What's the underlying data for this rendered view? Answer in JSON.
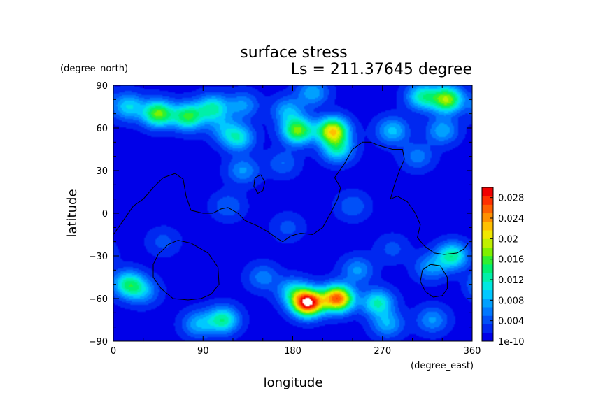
{
  "chart_data": {
    "type": "heatmap",
    "title": "surface stress",
    "subtitle": "Ls = 211.37645 degree",
    "xlabel": "longitude",
    "ylabel": "latitude",
    "x_unit": "(degree_east)",
    "y_unit": "(degree_north)",
    "xlim": [
      0,
      360
    ],
    "ylim": [
      -90,
      90
    ],
    "x_ticks": [
      "0",
      "90",
      "180",
      "270",
      "360"
    ],
    "y_ticks": [
      "90",
      "60",
      "30",
      "0",
      "−30",
      "−60",
      "−90"
    ],
    "colorbar": {
      "min": 1e-10,
      "max": 0.03,
      "tick_labels": [
        "1e-10",
        "0.004",
        "0.008",
        "0.012",
        "0.016",
        "0.02",
        "0.024",
        "0.028"
      ],
      "colors": [
        "#0000e8",
        "#0028f0",
        "#0050f8",
        "#0078ff",
        "#00a0ff",
        "#00c8ff",
        "#00e8e0",
        "#00f0a8",
        "#00f070",
        "#30f030",
        "#80f000",
        "#c0f000",
        "#f0e800",
        "#ffc000",
        "#ff9000",
        "#ff6000",
        "#ff3000",
        "#f00000"
      ]
    },
    "background_value": 0.001,
    "hotspots": [
      {
        "lon": 45,
        "lat": 70,
        "value": 0.016
      },
      {
        "lon": 75,
        "lat": 68,
        "value": 0.014
      },
      {
        "lon": 100,
        "lat": 74,
        "value": 0.011
      },
      {
        "lon": 15,
        "lat": 75,
        "value": 0.009
      },
      {
        "lon": 130,
        "lat": 76,
        "value": 0.006
      },
      {
        "lon": 175,
        "lat": 72,
        "value": 0.007
      },
      {
        "lon": 185,
        "lat": 58,
        "value": 0.016
      },
      {
        "lon": 220,
        "lat": 58,
        "value": 0.02
      },
      {
        "lon": 225,
        "lat": 45,
        "value": 0.01
      },
      {
        "lon": 200,
        "lat": 85,
        "value": 0.007
      },
      {
        "lon": 125,
        "lat": 53,
        "value": 0.01
      },
      {
        "lon": 110,
        "lat": 60,
        "value": 0.005
      },
      {
        "lon": 280,
        "lat": 58,
        "value": 0.008
      },
      {
        "lon": 335,
        "lat": 80,
        "value": 0.017
      },
      {
        "lon": 310,
        "lat": 82,
        "value": 0.011
      },
      {
        "lon": 330,
        "lat": 58,
        "value": 0.007
      },
      {
        "lon": 305,
        "lat": 40,
        "value": 0.005
      },
      {
        "lon": 130,
        "lat": 30,
        "value": 0.006
      },
      {
        "lon": 170,
        "lat": 35,
        "value": 0.004
      },
      {
        "lon": 115,
        "lat": 5,
        "value": 0.004
      },
      {
        "lon": 175,
        "lat": -10,
        "value": 0.003
      },
      {
        "lon": 240,
        "lat": 5,
        "value": 0.004
      },
      {
        "lon": 340,
        "lat": -30,
        "value": 0.012
      },
      {
        "lon": 318,
        "lat": -38,
        "value": 0.006
      },
      {
        "lon": 15,
        "lat": -50,
        "value": 0.012
      },
      {
        "lon": 30,
        "lat": -55,
        "value": 0.006
      },
      {
        "lon": 195,
        "lat": -63,
        "value": 0.03
      },
      {
        "lon": 225,
        "lat": -60,
        "value": 0.025
      },
      {
        "lon": 180,
        "lat": -55,
        "value": 0.008
      },
      {
        "lon": 265,
        "lat": -63,
        "value": 0.011
      },
      {
        "lon": 150,
        "lat": -45,
        "value": 0.005
      },
      {
        "lon": 110,
        "lat": -75,
        "value": 0.012
      },
      {
        "lon": 85,
        "lat": -78,
        "value": 0.007
      },
      {
        "lon": 275,
        "lat": -78,
        "value": 0.007
      },
      {
        "lon": 320,
        "lat": -75,
        "value": 0.006
      },
      {
        "lon": 50,
        "lat": -20,
        "value": 0.003
      },
      {
        "lon": 280,
        "lat": -25,
        "value": 0.003
      },
      {
        "lon": 245,
        "lat": -40,
        "value": 0.006
      }
    ],
    "contours": [
      [
        [
          0,
          -15
        ],
        [
          10,
          -5
        ],
        [
          20,
          5
        ],
        [
          30,
          10
        ],
        [
          40,
          18
        ],
        [
          50,
          25
        ],
        [
          62,
          28
        ],
        [
          70,
          24
        ],
        [
          73,
          12
        ],
        [
          78,
          2
        ],
        [
          90,
          0
        ],
        [
          100,
          0
        ],
        [
          108,
          3
        ],
        [
          115,
          4
        ],
        [
          125,
          0
        ],
        [
          132,
          -5
        ],
        [
          145,
          -9
        ],
        [
          155,
          -13
        ],
        [
          165,
          -18
        ],
        [
          170,
          -20
        ],
        [
          178,
          -16
        ],
        [
          188,
          -14
        ],
        [
          200,
          -15
        ],
        [
          210,
          -10
        ],
        [
          218,
          0
        ],
        [
          225,
          10
        ],
        [
          228,
          18
        ],
        [
          222,
          25
        ],
        [
          225,
          28
        ],
        [
          232,
          35
        ],
        [
          240,
          45
        ],
        [
          250,
          50
        ],
        [
          258,
          50
        ],
        [
          265,
          48
        ],
        [
          280,
          45
        ],
        [
          290,
          45
        ],
        [
          292,
          38
        ],
        [
          287,
          30
        ],
        [
          282,
          20
        ],
        [
          278,
          10
        ],
        [
          285,
          12
        ],
        [
          295,
          8
        ],
        [
          303,
          0
        ],
        [
          308,
          -8
        ],
        [
          305,
          -17
        ],
        [
          312,
          -23
        ],
        [
          322,
          -28
        ],
        [
          332,
          -29
        ],
        [
          345,
          -28
        ],
        [
          352,
          -25
        ],
        [
          356,
          -21
        ]
      ],
      [
        [
          142,
          25
        ],
        [
          148,
          27
        ],
        [
          152,
          22
        ],
        [
          150,
          16
        ],
        [
          145,
          14
        ],
        [
          141,
          19
        ],
        [
          142,
          25
        ]
      ],
      [
        [
          45,
          -29
        ],
        [
          55,
          -22
        ],
        [
          65,
          -19
        ],
        [
          78,
          -21
        ],
        [
          95,
          -28
        ],
        [
          105,
          -38
        ],
        [
          106,
          -50
        ],
        [
          98,
          -57
        ],
        [
          88,
          -60
        ],
        [
          75,
          -61
        ],
        [
          60,
          -60
        ],
        [
          48,
          -53
        ],
        [
          40,
          -45
        ],
        [
          40,
          -36
        ],
        [
          45,
          -29
        ]
      ],
      [
        [
          310,
          -40
        ],
        [
          318,
          -36
        ],
        [
          328,
          -37
        ],
        [
          335,
          -45
        ],
        [
          335,
          -53
        ],
        [
          330,
          -58
        ],
        [
          321,
          -59
        ],
        [
          313,
          -55
        ],
        [
          308,
          -48
        ],
        [
          310,
          -40
        ]
      ]
    ]
  }
}
